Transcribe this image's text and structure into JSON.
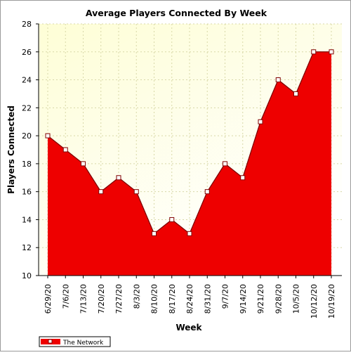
{
  "chart_data": {
    "type": "area",
    "title": "Average Players Connected By Week",
    "xlabel": "Week",
    "ylabel": "Players Connected",
    "categories": [
      "6/29/20",
      "7/6/20",
      "7/13/20",
      "7/20/20",
      "7/27/20",
      "8/3/20",
      "8/10/20",
      "8/17/20",
      "8/24/20",
      "8/31/20",
      "9/7/20",
      "9/14/20",
      "9/21/20",
      "9/28/20",
      "10/5/20",
      "10/12/20",
      "10/19/20"
    ],
    "series": [
      {
        "name": "The Network",
        "values": [
          20,
          19,
          18,
          16,
          17,
          16,
          13,
          14,
          13,
          16,
          18,
          17,
          21,
          24,
          23,
          26,
          26
        ]
      }
    ],
    "ylim": [
      10,
      28
    ],
    "yticks": [
      "10",
      "12",
      "14",
      "16",
      "18",
      "20",
      "22",
      "24",
      "26",
      "28"
    ],
    "grid": true,
    "legend_position": "bottom-left",
    "colors": {
      "fill": "#ee0000",
      "line": "#800000",
      "plot_bg_top": "#fefed6",
      "plot_bg_bottom": "#ffffff",
      "grid": "#d8d8a8"
    }
  }
}
